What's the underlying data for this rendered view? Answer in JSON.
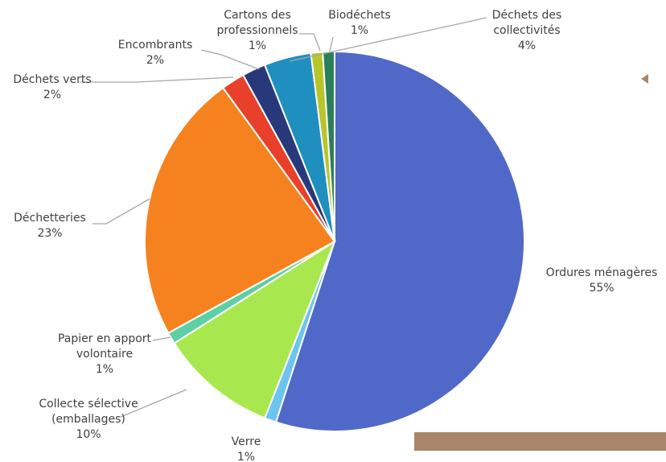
{
  "chart_data": {
    "type": "pie",
    "categories": [
      "Ordures ménagères",
      "Verre",
      "Collecte sélective (emballages)",
      "Papier en apport volontaire",
      "Déchetteries",
      "Déchets verts",
      "Encombrants",
      "Déchets des collectivités",
      "Cartons des professionnels",
      "Biodéchets"
    ],
    "values": [
      55,
      1,
      10,
      1,
      23,
      2,
      2,
      4,
      1,
      1
    ],
    "value_labels": [
      "55%",
      "1%",
      "10%",
      "1%",
      "23%",
      "2%",
      "2%",
      "4%",
      "1%",
      "1%"
    ],
    "colors": [
      "#5068c8",
      "#6cc4f0",
      "#a8e84e",
      "#5ccfa6",
      "#f5821f",
      "#e8402a",
      "#27397a",
      "#1f8fc0",
      "#b8c52a",
      "#2a7f5a"
    ]
  }
}
